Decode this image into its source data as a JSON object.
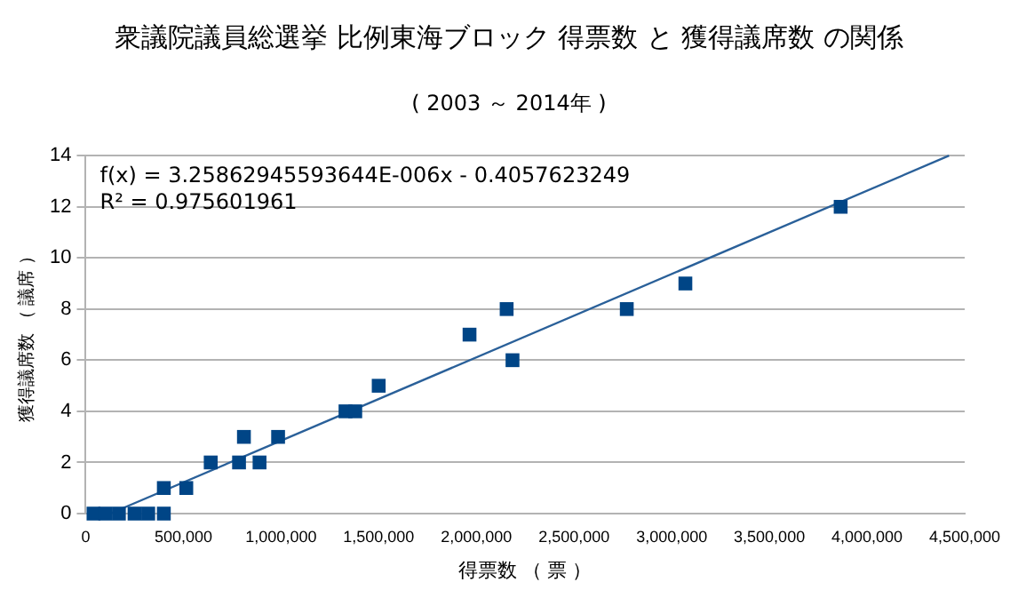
{
  "chart_data": {
    "type": "scatter",
    "title": "衆議院議員総選挙 比例東海ブロック  得票数 と 獲得議席数 の関係",
    "subtitle": "( 2003 ～ 2014年 )",
    "xlabel": "得票数 （ 票 ）",
    "ylabel": "獲得議席数 （ 議席 ）",
    "series": [
      {
        "type": "scatter",
        "color": "#004586",
        "marker": "square",
        "x": [
          40000,
          100000,
          170000,
          250000,
          320000,
          400000,
          400000,
          515000,
          640000,
          785000,
          890000,
          810000,
          985000,
          1330000,
          1380000,
          1500000,
          1965000,
          2155000,
          2185000,
          2770000,
          3070000,
          3865000
        ],
        "values": [
          0,
          0,
          0,
          0,
          0,
          0,
          1,
          1,
          2,
          2,
          2,
          3,
          3,
          4,
          4,
          5,
          7,
          8,
          6,
          8,
          9,
          12
        ]
      },
      {
        "type": "line",
        "color": "#2a6099",
        "marker": "none",
        "x": [
          125000,
          4420000
        ],
        "values": [
          0,
          14
        ]
      }
    ],
    "xlim": [
      0,
      4500000
    ],
    "xticks": [
      0,
      {
        "value": 500000,
        "label": "500,000"
      },
      {
        "value": 1000000,
        "label": "1,000,000"
      },
      {
        "value": 1500000,
        "label": "1,500,000"
      },
      {
        "value": 2000000,
        "label": "2,000,000"
      },
      {
        "value": 2500000,
        "label": "2,500,000"
      },
      {
        "value": 3000000,
        "label": "3,000,000"
      },
      {
        "value": 3500000,
        "label": "3,500,000"
      },
      {
        "value": 4000000,
        "label": "4,000,000"
      },
      {
        "value": 4500000,
        "label": "4,500,000"
      }
    ],
    "ylim": [
      0,
      14
    ],
    "yticks": [
      0,
      2,
      4,
      6,
      8,
      10,
      12,
      14
    ],
    "grid": "y",
    "legend": false,
    "annotations": [
      "f(x) = 3.25862945593644E-006x - 0.4057623249",
      "R² = 0.975601961"
    ]
  }
}
